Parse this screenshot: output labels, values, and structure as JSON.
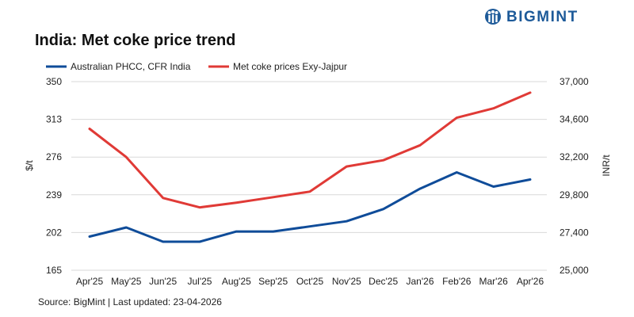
{
  "logo": {
    "text": "BIGMINT",
    "icon": "bigmint-logo-icon",
    "color": "#1d5a99"
  },
  "title": "India: Met coke price trend",
  "source": "Source: BigMint | Last updated: 23-04-2026",
  "chart_data": {
    "type": "line",
    "x": [
      "Apr'25",
      "May'25",
      "Jun'25",
      "Jul'25",
      "Aug'25",
      "Sep'25",
      "Oct'25",
      "Nov'25",
      "Dec'25",
      "Jan'26",
      "Feb'26",
      "Mar'26",
      "Apr'26"
    ],
    "y_left": {
      "label": "$/t",
      "ticks": [
        "350",
        "313",
        "276",
        "239",
        "202",
        "165"
      ],
      "range": [
        165,
        350
      ]
    },
    "y_right": {
      "label": "INR/t",
      "ticks": [
        "37,000",
        "34,600",
        "32,200",
        "29,800",
        "27,400",
        "25,000"
      ],
      "range": [
        25000,
        37000
      ]
    },
    "series": [
      {
        "name": "Australian PHCC, CFR India",
        "axis": "left",
        "color": "#0f4c99",
        "values": [
          198,
          207,
          193,
          193,
          203,
          203,
          208,
          213,
          225,
          245,
          261,
          247,
          254
        ]
      },
      {
        "name": "Met coke prices Exy-Jajpur",
        "axis": "right",
        "color": "#e03a36",
        "values": [
          34000,
          32200,
          29600,
          29000,
          29300,
          29650,
          30000,
          31600,
          32000,
          32950,
          34700,
          35300,
          36300
        ]
      }
    ],
    "legend_position": "top-left",
    "grid": "horizontal"
  }
}
